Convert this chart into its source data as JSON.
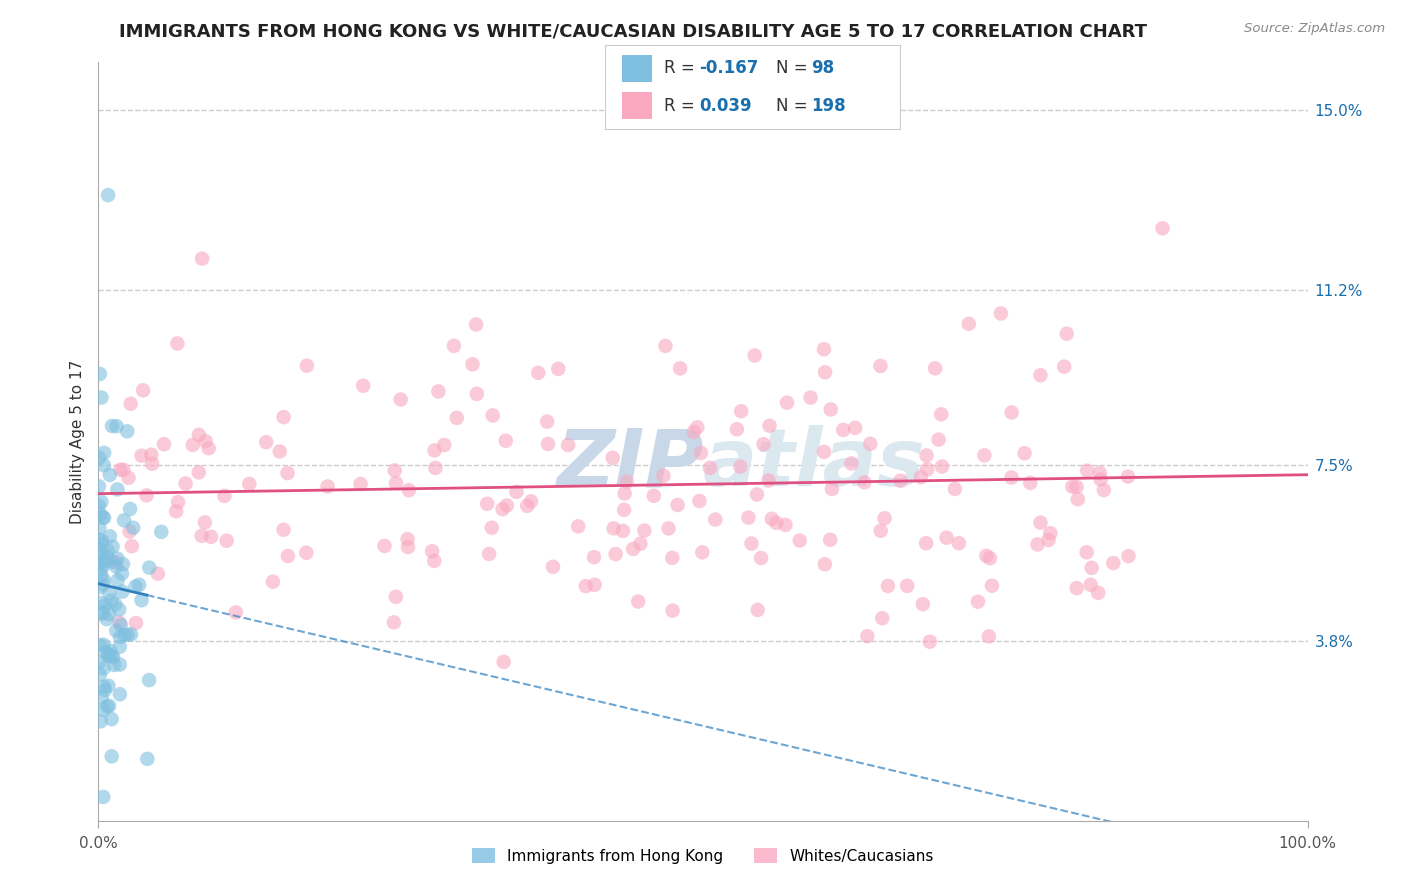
{
  "title": "IMMIGRANTS FROM HONG KONG VS WHITE/CAUCASIAN DISABILITY AGE 5 TO 17 CORRELATION CHART",
  "source_text": "Source: ZipAtlas.com",
  "ylabel": "Disability Age 5 to 17",
  "xlabel": "",
  "xlim": [
    0.0,
    1.0
  ],
  "ylim": [
    0.0,
    0.16
  ],
  "yticks": [
    0.038,
    0.075,
    0.112,
    0.15
  ],
  "ytick_labels": [
    "3.8%",
    "7.5%",
    "11.2%",
    "15.0%"
  ],
  "xtick_labels": [
    "0.0%",
    "100.0%"
  ],
  "xticks": [
    0.0,
    1.0
  ],
  "blue_R": -0.167,
  "blue_N": 98,
  "pink_R": 0.039,
  "pink_N": 198,
  "blue_color": "#7fbfdf",
  "pink_color": "#f9a8c0",
  "blue_line_color": "#3080c0",
  "pink_line_color": "#e05080",
  "legend_R_color": "#1a6faf",
  "watermark_color": "#d8e4f0",
  "background_color": "#ffffff",
  "grid_color": "#cccccc",
  "title_fontsize": 13,
  "axis_label_fontsize": 11,
  "tick_fontsize": 11,
  "legend_fontsize": 12,
  "blue_intercept": 0.05,
  "blue_slope": -0.06,
  "pink_intercept": 0.069,
  "pink_slope": 0.004,
  "seed": 42
}
